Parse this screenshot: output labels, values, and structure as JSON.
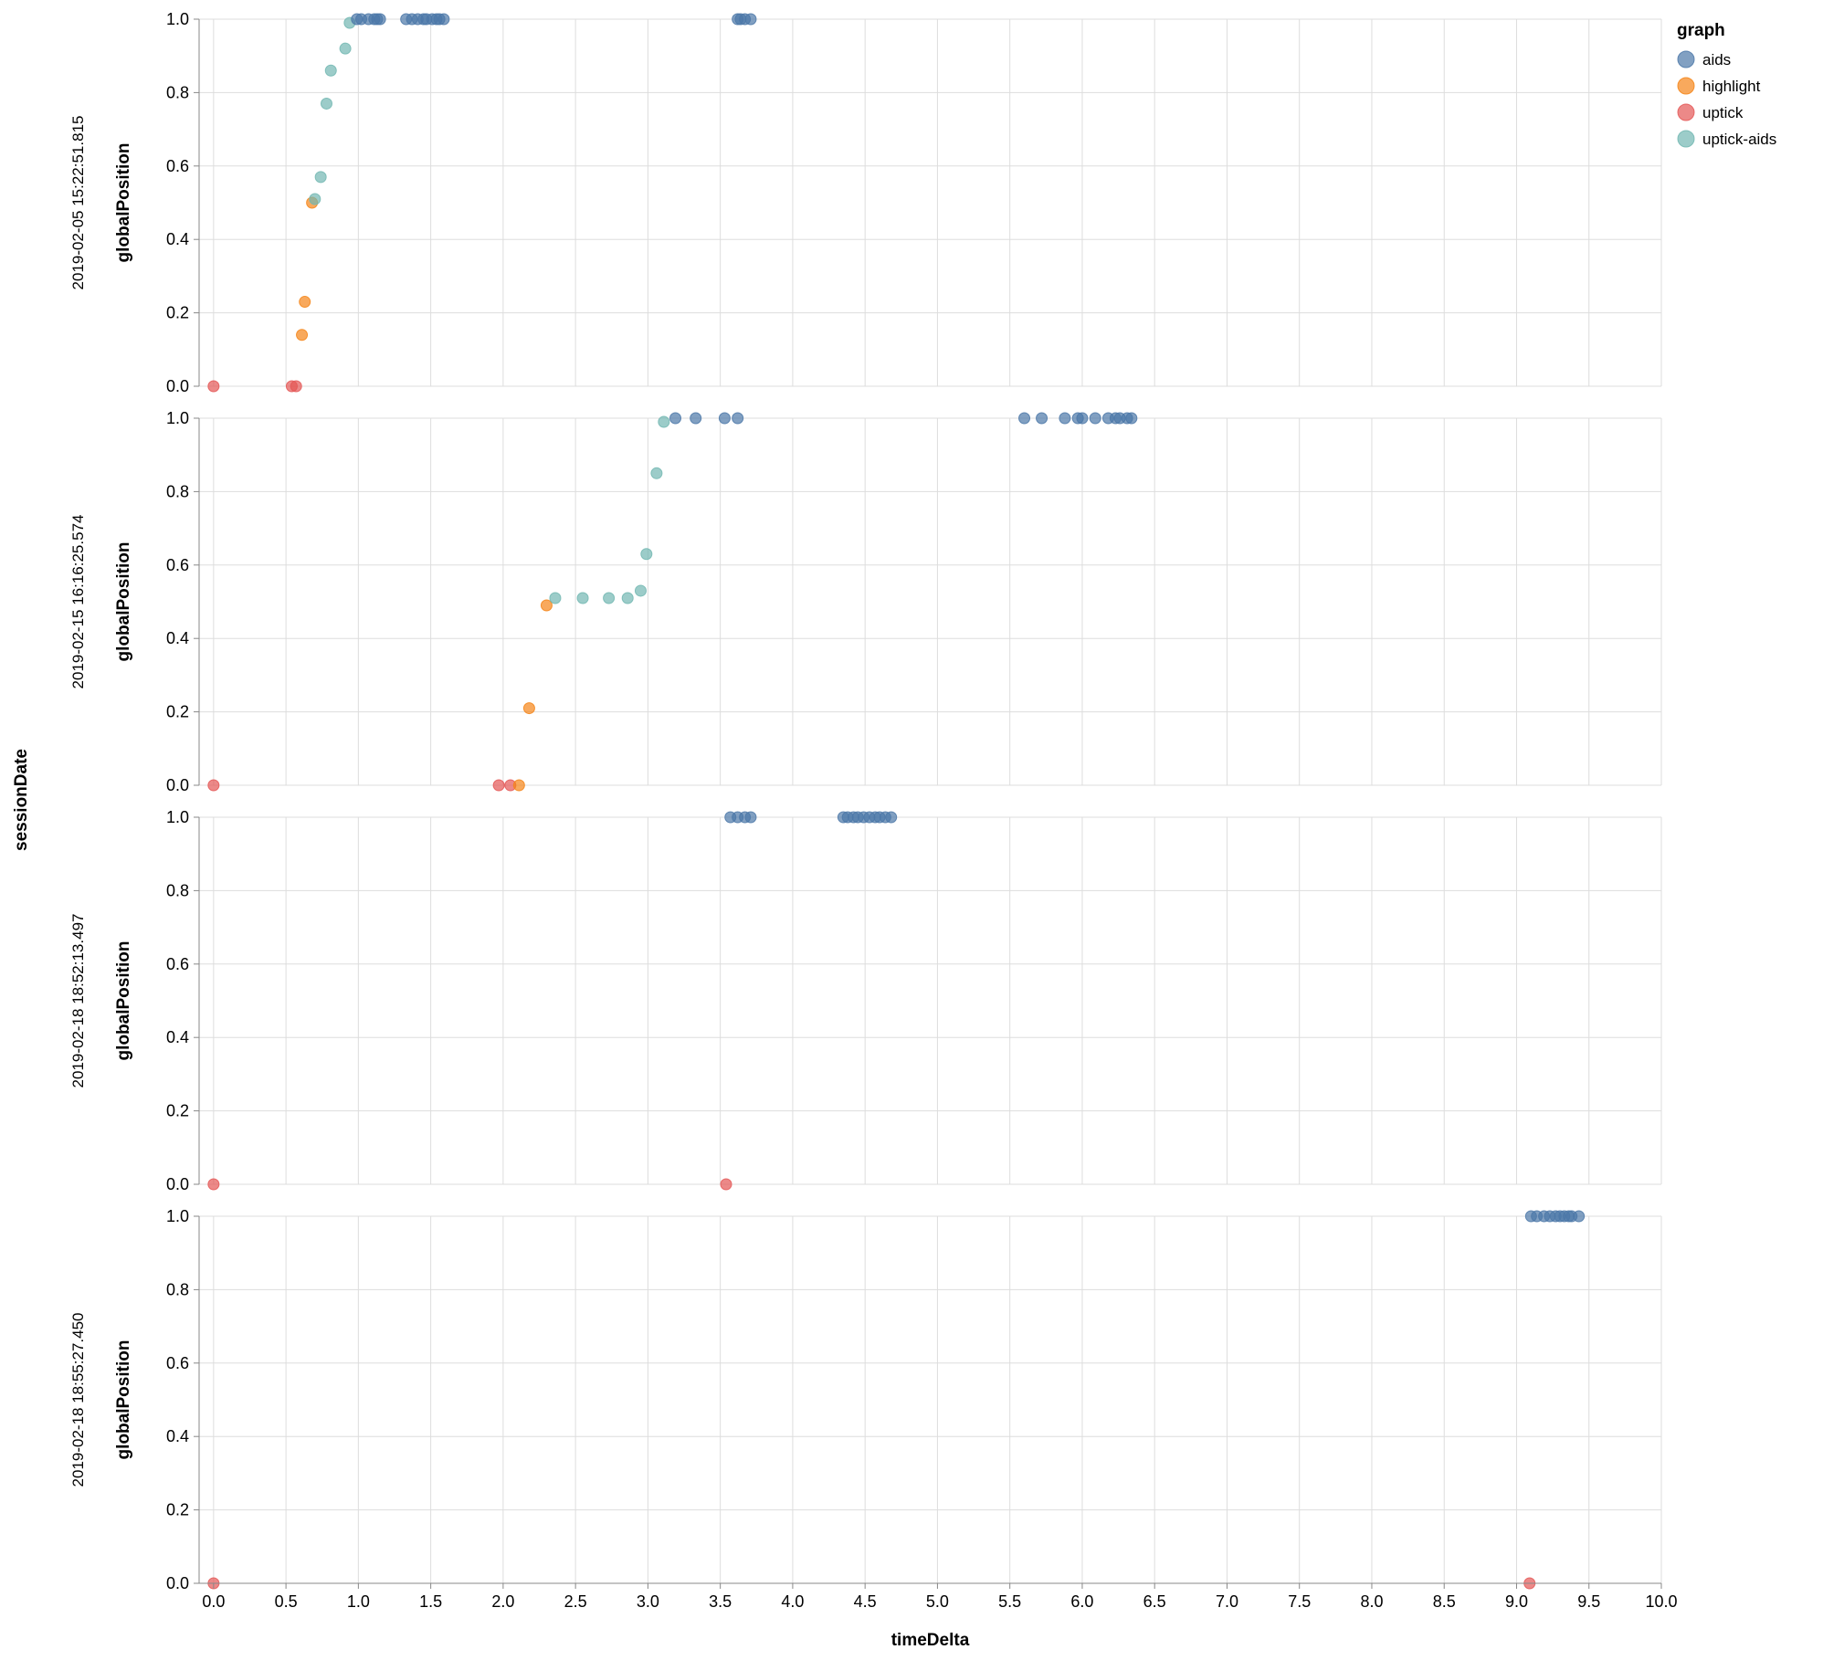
{
  "chart_data": {
    "type": "scatter",
    "x_field": "timeDelta",
    "y_field": "globalPosition",
    "row_field": "sessionDate",
    "xlabel": "timeDelta",
    "ylabel": "globalPosition",
    "row_title": "sessionDate",
    "xlim": [
      -0.1,
      10.0
    ],
    "ylim": [
      0,
      1
    ],
    "x_ticks": [
      "0.0",
      "0.5",
      "1.0",
      "1.5",
      "2.0",
      "2.5",
      "3.0",
      "3.5",
      "4.0",
      "4.5",
      "5.0",
      "5.5",
      "6.0",
      "6.5",
      "7.0",
      "7.5",
      "8.0",
      "8.5",
      "9.0",
      "9.5",
      "10.0"
    ],
    "y_ticks": [
      "0.0",
      "0.2",
      "0.4",
      "0.6",
      "0.8",
      "1.0"
    ],
    "grid": true,
    "legend": {
      "title": "graph",
      "placement": "top-right",
      "entries": [
        {
          "name": "aids",
          "color": "#4c78a8"
        },
        {
          "name": "highlight",
          "color": "#f58518"
        },
        {
          "name": "uptick",
          "color": "#e45756"
        },
        {
          "name": "uptick-aids",
          "color": "#72b7b2"
        }
      ]
    },
    "facets": [
      {
        "label": "2019-02-05 15:22:51.815",
        "series": [
          {
            "name": "uptick",
            "points": [
              [
                0.0,
                0
              ],
              [
                0.54,
                0
              ],
              [
                0.57,
                0
              ]
            ]
          },
          {
            "name": "highlight",
            "points": [
              [
                0.61,
                0.14
              ],
              [
                0.63,
                0.23
              ],
              [
                0.68,
                0.5
              ]
            ]
          },
          {
            "name": "uptick-aids",
            "points": [
              [
                0.7,
                0.51
              ],
              [
                0.74,
                0.57
              ],
              [
                0.78,
                0.77
              ],
              [
                0.81,
                0.86
              ],
              [
                0.91,
                0.92
              ],
              [
                0.94,
                0.99
              ]
            ]
          },
          {
            "name": "aids",
            "points": [
              [
                0.99,
                1
              ],
              [
                1.02,
                1
              ],
              [
                1.07,
                1
              ],
              [
                1.11,
                1
              ],
              [
                1.13,
                1
              ],
              [
                1.15,
                1
              ],
              [
                1.33,
                1
              ],
              [
                1.37,
                1
              ],
              [
                1.41,
                1
              ],
              [
                1.45,
                1
              ],
              [
                1.47,
                1
              ],
              [
                1.51,
                1
              ],
              [
                1.54,
                1
              ],
              [
                1.56,
                1
              ],
              [
                1.59,
                1
              ],
              [
                3.62,
                1
              ],
              [
                3.64,
                1
              ],
              [
                3.67,
                1
              ],
              [
                3.71,
                1
              ]
            ]
          }
        ]
      },
      {
        "label": "2019-02-15 16:16:25.574",
        "series": [
          {
            "name": "uptick",
            "points": [
              [
                0.0,
                0
              ],
              [
                1.97,
                0
              ],
              [
                2.05,
                0
              ]
            ]
          },
          {
            "name": "highlight",
            "points": [
              [
                2.11,
                0
              ],
              [
                2.18,
                0.21
              ],
              [
                2.3,
                0.49
              ]
            ]
          },
          {
            "name": "uptick-aids",
            "points": [
              [
                2.36,
                0.51
              ],
              [
                2.55,
                0.51
              ],
              [
                2.73,
                0.51
              ],
              [
                2.86,
                0.51
              ],
              [
                2.95,
                0.53
              ],
              [
                2.99,
                0.63
              ],
              [
                3.06,
                0.85
              ],
              [
                3.11,
                0.99
              ]
            ]
          },
          {
            "name": "aids",
            "points": [
              [
                3.19,
                1
              ],
              [
                3.33,
                1
              ],
              [
                3.53,
                1
              ],
              [
                3.62,
                1
              ],
              [
                5.6,
                1
              ],
              [
                5.72,
                1
              ],
              [
                5.88,
                1
              ],
              [
                5.97,
                1
              ],
              [
                6.0,
                1
              ],
              [
                6.09,
                1
              ],
              [
                6.18,
                1
              ],
              [
                6.23,
                1
              ],
              [
                6.26,
                1
              ],
              [
                6.31,
                1
              ],
              [
                6.34,
                1
              ]
            ]
          }
        ]
      },
      {
        "label": "2019-02-18 18:52:13.497",
        "series": [
          {
            "name": "uptick",
            "points": [
              [
                0.0,
                0
              ],
              [
                3.54,
                0
              ]
            ]
          },
          {
            "name": "aids",
            "points": [
              [
                3.57,
                1
              ],
              [
                3.62,
                1
              ],
              [
                3.67,
                1
              ],
              [
                3.71,
                1
              ],
              [
                4.35,
                1
              ],
              [
                4.38,
                1
              ],
              [
                4.42,
                1
              ],
              [
                4.45,
                1
              ],
              [
                4.49,
                1
              ],
              [
                4.53,
                1
              ],
              [
                4.57,
                1
              ],
              [
                4.6,
                1
              ],
              [
                4.64,
                1
              ],
              [
                4.68,
                1
              ]
            ]
          }
        ]
      },
      {
        "label": "2019-02-18 18:55:27.450",
        "series": [
          {
            "name": "uptick",
            "points": [
              [
                0.0,
                0
              ],
              [
                9.09,
                0
              ]
            ]
          },
          {
            "name": "aids",
            "points": [
              [
                9.1,
                1
              ],
              [
                9.14,
                1
              ],
              [
                9.19,
                1
              ],
              [
                9.23,
                1
              ],
              [
                9.27,
                1
              ],
              [
                9.3,
                1
              ],
              [
                9.33,
                1
              ],
              [
                9.36,
                1
              ],
              [
                9.38,
                1
              ],
              [
                9.43,
                1
              ]
            ]
          }
        ]
      }
    ]
  }
}
